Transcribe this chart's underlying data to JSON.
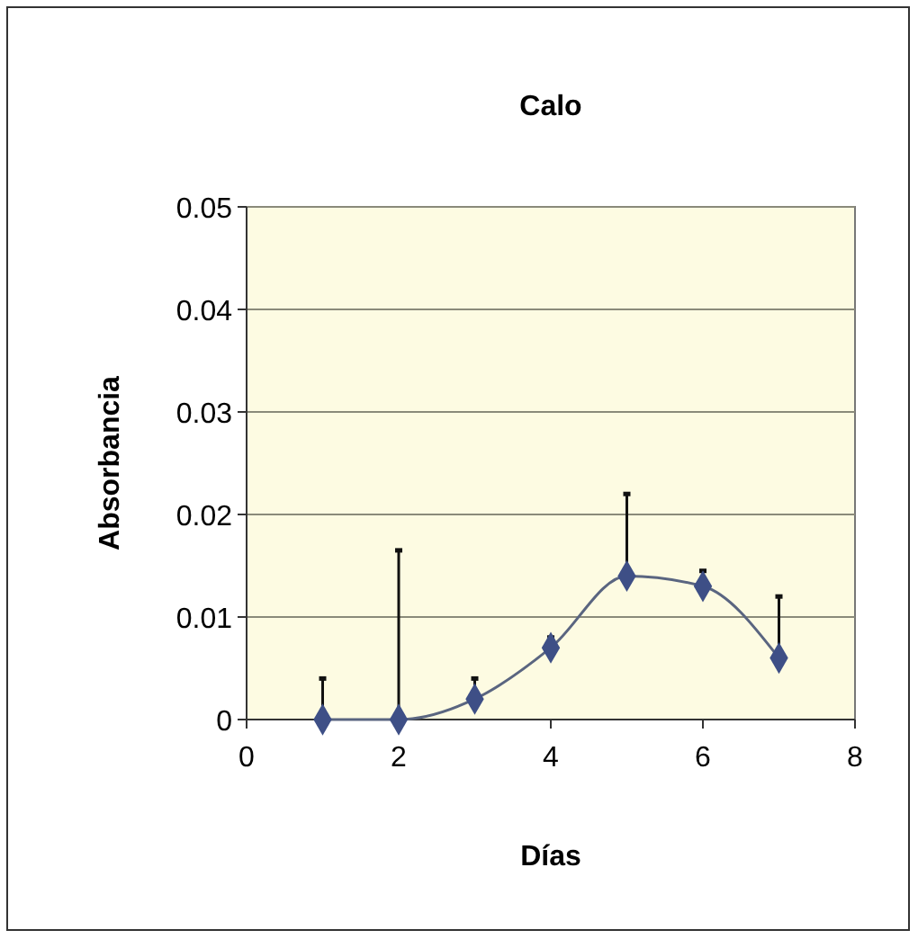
{
  "chart_data": {
    "type": "line",
    "title": "Calo",
    "xlabel": "Días",
    "ylabel": "Absorbancia",
    "x": [
      1,
      2,
      3,
      4,
      5,
      6,
      7
    ],
    "series": [
      {
        "color": "#3e4f86",
        "values": [
          0,
          0,
          0.002,
          0.007,
          0.014,
          0.013,
          0.006
        ],
        "errors": [
          [
            0,
            0.004
          ],
          [
            0,
            0.0165
          ],
          [
            0.002,
            0.004
          ],
          [
            0.007,
            0.008
          ],
          [
            0.014,
            0.022
          ],
          [
            0.013,
            0.0145
          ],
          [
            0.006,
            0.012
          ]
        ]
      }
    ],
    "xlim": [
      0,
      8
    ],
    "xticks": [
      0,
      2,
      4,
      6,
      8
    ],
    "ylim": [
      0,
      0.05
    ],
    "yticks": [
      0,
      0.01,
      0.02,
      0.03,
      0.04,
      0.05
    ],
    "grid": "y",
    "marker": "diamond",
    "line_style": "solid"
  }
}
